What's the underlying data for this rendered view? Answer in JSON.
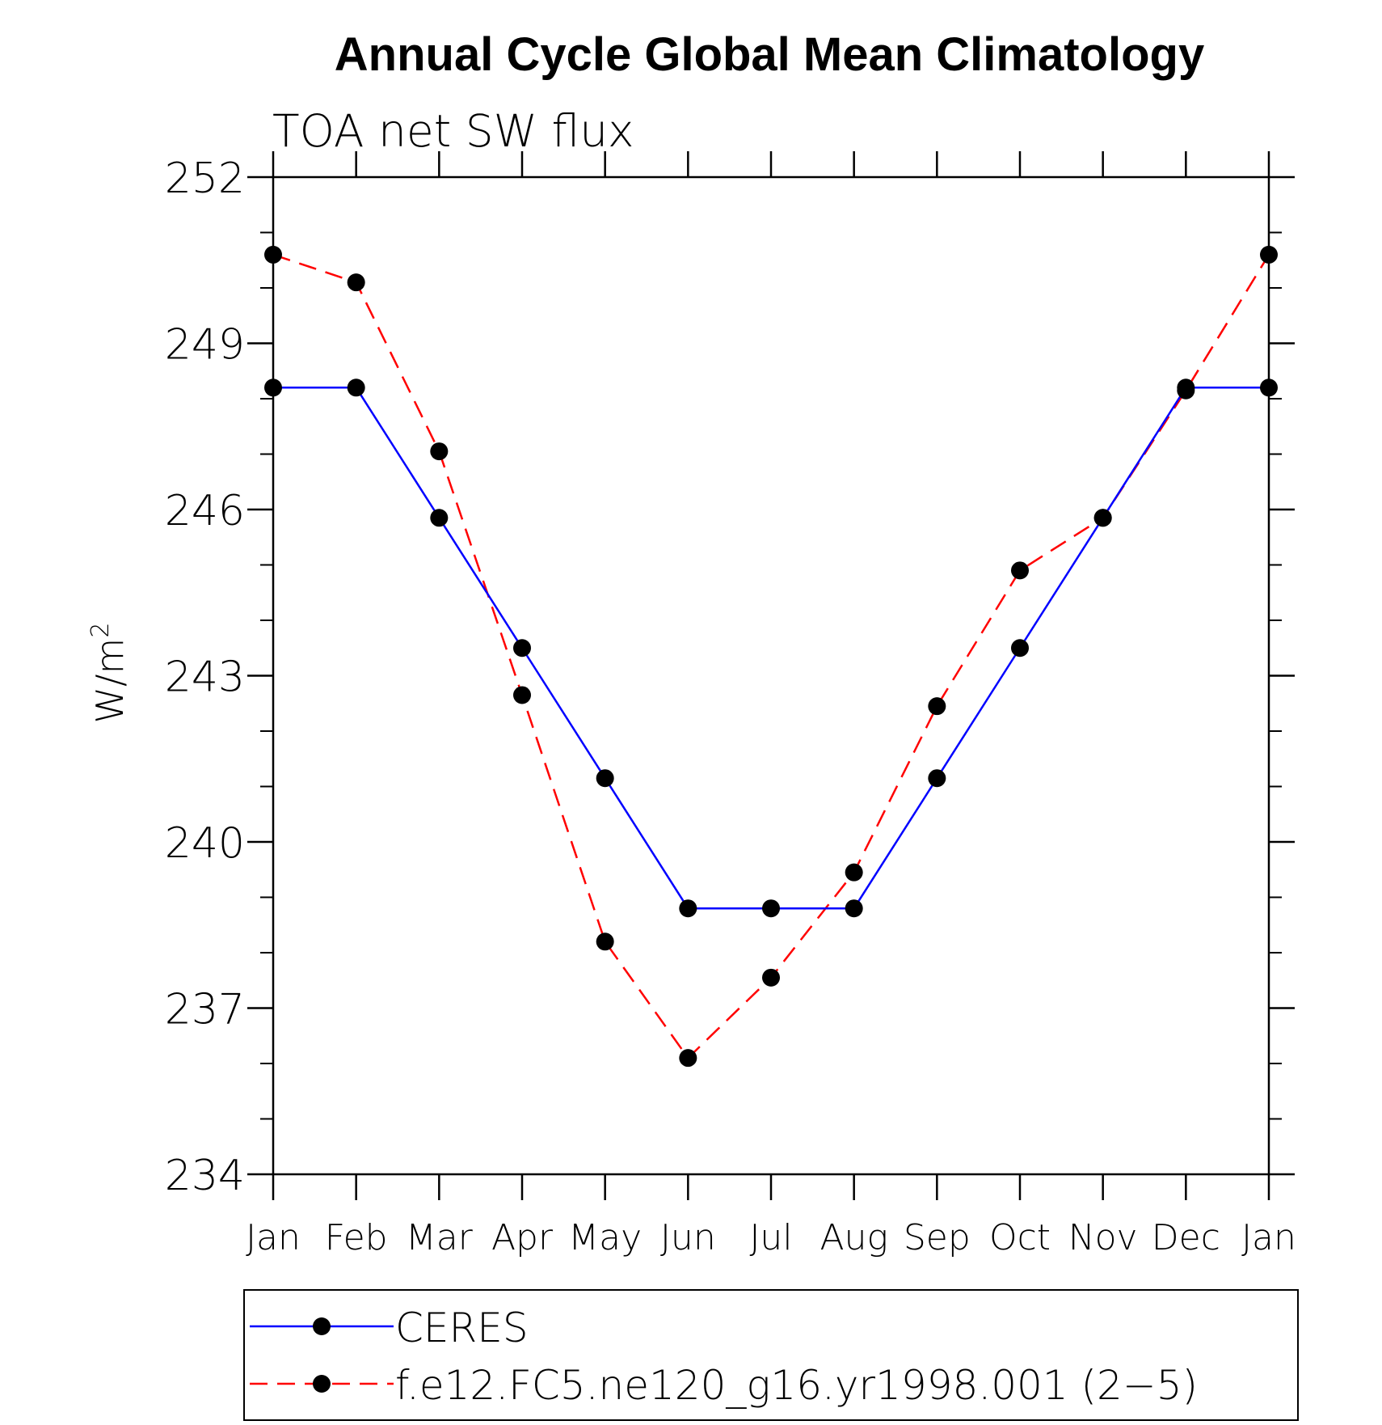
{
  "chart_data": {
    "type": "line",
    "title": "Annual Cycle Global Mean Climatology",
    "subtitle": "TOA net SW flux",
    "xlabel": "",
    "ylabel": "W/m",
    "ylabel_superscript": "2",
    "categories": [
      "Jan",
      "Feb",
      "Mar",
      "Apr",
      "May",
      "Jun",
      "Jul",
      "Aug",
      "Sep",
      "Oct",
      "Nov",
      "Dec",
      "Jan"
    ],
    "ylim": [
      234,
      252
    ],
    "yticks": [
      234,
      237,
      240,
      243,
      246,
      249,
      252
    ],
    "grid": false,
    "legend_position": "bottom",
    "series": [
      {
        "name": "CERES",
        "color": "#0000ff",
        "style": "solid",
        "values": [
          248.2,
          248.2,
          245.85,
          243.5,
          241.15,
          238.8,
          238.8,
          238.8,
          241.15,
          243.5,
          245.85,
          248.2,
          248.2
        ]
      },
      {
        "name": "f.e12.FC5.ne120_g16.yr1998.001 (2−5)",
        "color": "#ff0000",
        "style": "dashed",
        "values": [
          250.6,
          250.1,
          247.05,
          242.65,
          238.2,
          236.1,
          237.55,
          239.45,
          242.45,
          244.9,
          245.85,
          248.15,
          250.6
        ]
      }
    ]
  }
}
